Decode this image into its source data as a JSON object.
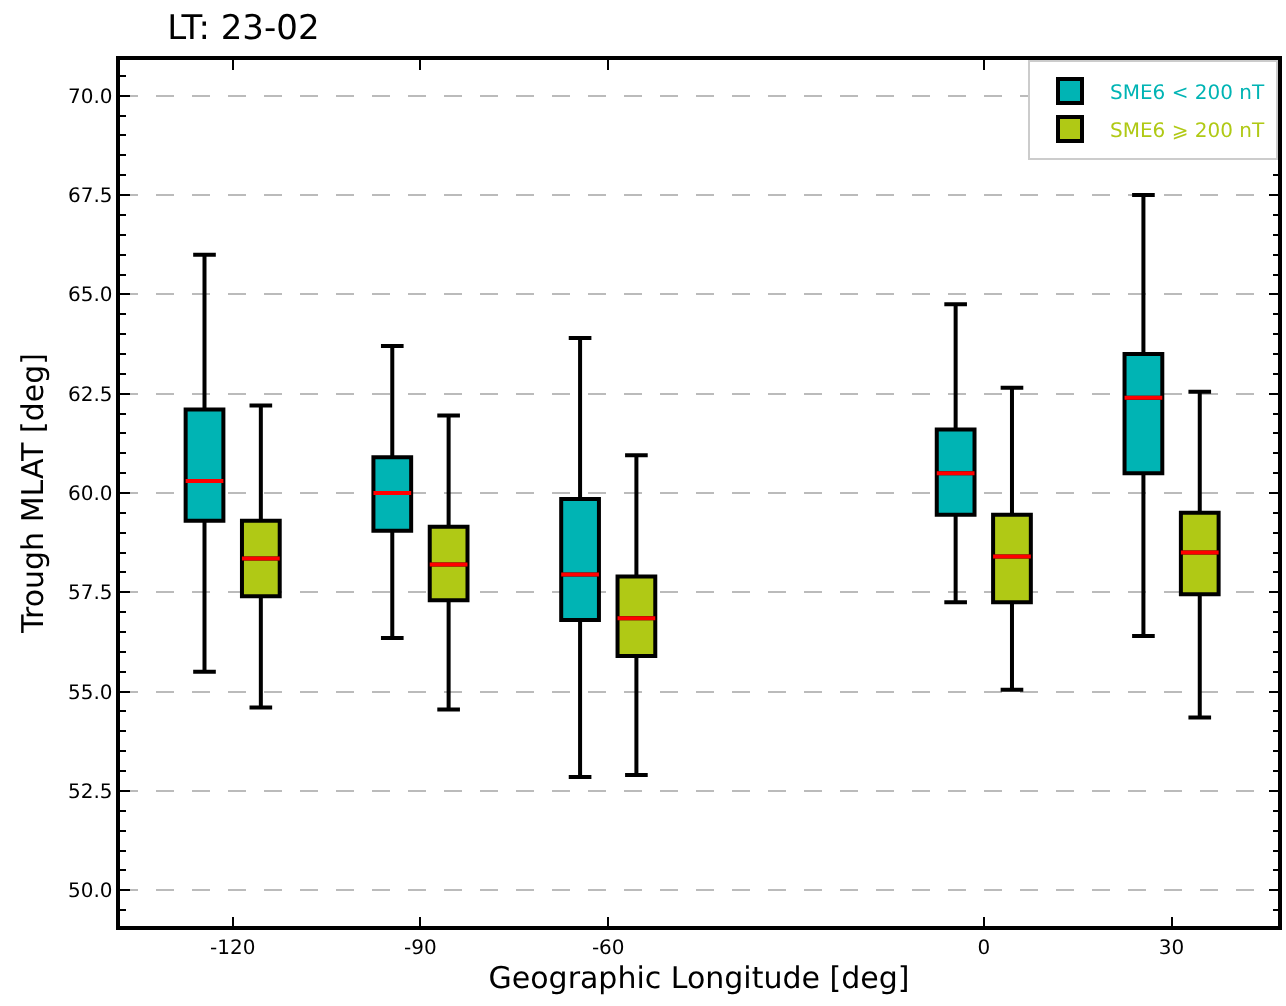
{
  "chart_data": {
    "type": "box",
    "title": "LT: 23-02",
    "xlabel": "Geographic Longitude [deg]",
    "ylabel": "Trough MLAT [deg]",
    "x": [
      -120,
      -90,
      -60,
      0,
      30
    ],
    "xlim": [
      -138,
      47
    ],
    "xticks": [
      -120,
      -90,
      -60,
      0,
      30
    ],
    "ylim": [
      49.1,
      70.9
    ],
    "yticks": [
      {
        "value": 50,
        "label": "50.0"
      },
      {
        "value": 52.5,
        "label": "52.5"
      },
      {
        "value": 55,
        "label": "55.0"
      },
      {
        "value": 57.5,
        "label": "57.5"
      },
      {
        "value": 60,
        "label": "60.0"
      },
      {
        "value": 62.5,
        "label": "62.5"
      },
      {
        "value": 65,
        "label": "65.0"
      },
      {
        "value": 67.5,
        "label": "67.5"
      },
      {
        "value": 70,
        "label": "70.0"
      }
    ],
    "grid": "y",
    "legend": "top right",
    "series": [
      {
        "name": "SME6 < 200 nT",
        "color": "#00b4b4",
        "boxes": [
          {
            "low": 55.5,
            "q1": 59.3,
            "median": 60.3,
            "q3": 62.1,
            "high": 66.0
          },
          {
            "low": 56.35,
            "q1": 59.05,
            "median": 60.0,
            "q3": 60.9,
            "high": 63.7
          },
          {
            "low": 52.85,
            "q1": 56.8,
            "median": 57.95,
            "q3": 59.85,
            "high": 63.9
          },
          {
            "low": 57.25,
            "q1": 59.45,
            "median": 60.5,
            "q3": 61.6,
            "high": 64.75
          },
          {
            "low": 56.4,
            "q1": 60.5,
            "median": 62.4,
            "q3": 63.5,
            "high": 67.5
          }
        ]
      },
      {
        "name": "SME6 ⩾ 200 nT",
        "color": "#b0c915",
        "boxes": [
          {
            "low": 54.6,
            "q1": 57.4,
            "median": 58.35,
            "q3": 59.3,
            "high": 62.2
          },
          {
            "low": 54.55,
            "q1": 57.3,
            "median": 58.2,
            "q3": 59.15,
            "high": 61.95
          },
          {
            "low": 52.9,
            "q1": 55.9,
            "median": 56.85,
            "q3": 57.9,
            "high": 60.95
          },
          {
            "low": 55.05,
            "q1": 57.25,
            "median": 58.4,
            "q3": 59.45,
            "high": 62.65
          },
          {
            "low": 54.35,
            "q1": 57.45,
            "median": 58.5,
            "q3": 59.5,
            "high": 62.55
          }
        ]
      }
    ]
  }
}
